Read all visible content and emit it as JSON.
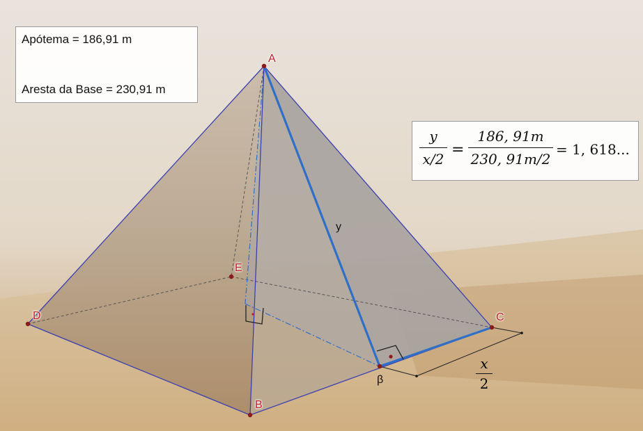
{
  "info": {
    "apotema": "Apótema = 186,91 m",
    "aresta": "Aresta da Base = 230,91 m"
  },
  "formula": {
    "lhs_num": "y",
    "lhs_den": "x/2",
    "eq1": "=",
    "rhs_num": "186, 91m",
    "rhs_den": "230, 91m/2",
    "eq2": "= 1, 618..."
  },
  "points": {
    "A": "A",
    "B": "B",
    "C": "C",
    "D": "D",
    "E": "E",
    "beta": "β"
  },
  "segment_label": "y",
  "half_base": {
    "num": "x",
    "den": "2"
  },
  "colors": {
    "edge": "#3a3fb0",
    "highlight": "#2f6fc8",
    "point": "#8b1a1a",
    "label": "#c0202a"
  }
}
